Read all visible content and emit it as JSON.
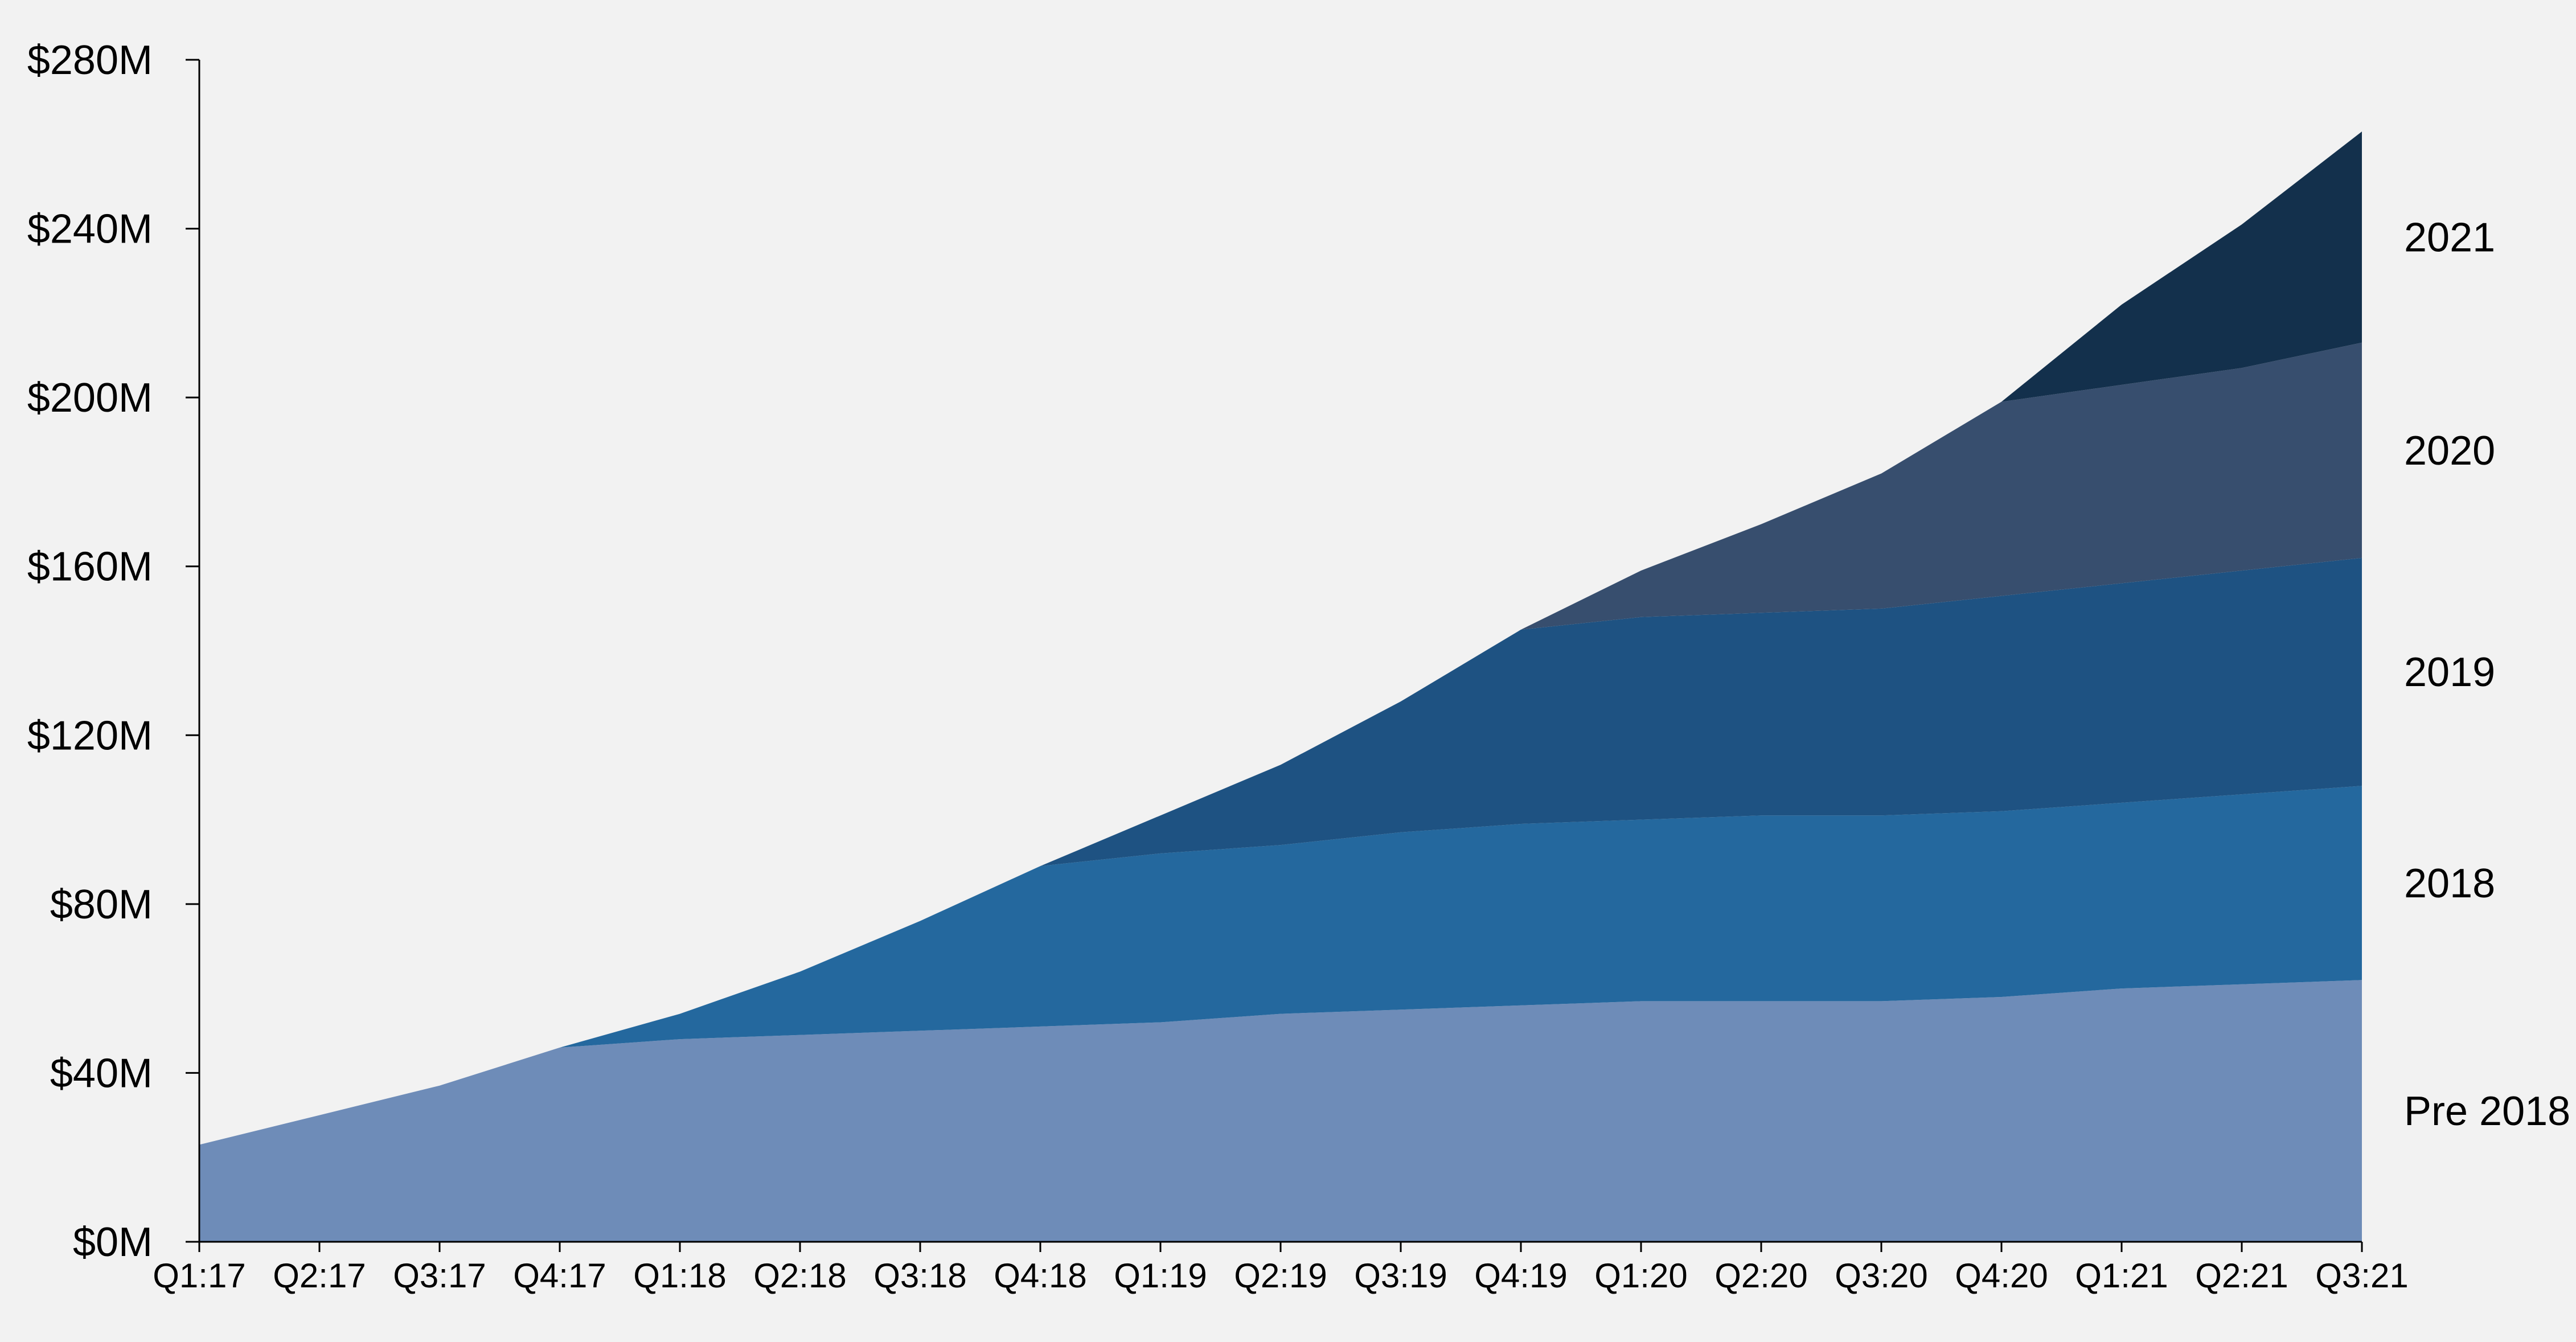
{
  "chart_data": {
    "type": "area",
    "stacked": true,
    "title": "",
    "xlabel": "",
    "ylabel": "",
    "x": [
      "Q1:17",
      "Q2:17",
      "Q3:17",
      "Q4:17",
      "Q1:18",
      "Q2:18",
      "Q3:18",
      "Q4:18",
      "Q1:19",
      "Q2:19",
      "Q3:19",
      "Q4:19",
      "Q1:20",
      "Q2:20",
      "Q3:20",
      "Q4:20",
      "Q1:21",
      "Q2:21",
      "Q3:21"
    ],
    "ylim": [
      0,
      280
    ],
    "y_ticks": [
      0,
      40,
      80,
      120,
      160,
      200,
      240,
      280
    ],
    "y_tick_labels": [
      "$0M",
      "$40M",
      "$80M",
      "$120M",
      "$160M",
      "$200M",
      "$240M",
      "$280M"
    ],
    "grid": false,
    "legend_placement": "right",
    "series": [
      {
        "name": "Pre 2018",
        "color": "#6e8cb8",
        "values": [
          23,
          30,
          37,
          46,
          48,
          49,
          50,
          51,
          52,
          54,
          55,
          56,
          57,
          57,
          57,
          58,
          60,
          61,
          62
        ]
      },
      {
        "name": "2018",
        "color": "#24689e",
        "values": [
          0,
          0,
          0,
          0,
          6,
          15,
          26,
          38,
          40,
          40,
          42,
          43,
          43,
          44,
          44,
          44,
          44,
          45,
          46
        ]
      },
      {
        "name": "2019",
        "color": "#1e5282",
        "values": [
          0,
          0,
          0,
          0,
          0,
          0,
          0,
          0,
          9,
          19,
          31,
          46,
          48,
          48,
          49,
          51,
          52,
          53,
          54
        ]
      },
      {
        "name": "2020",
        "color": "#374e6e",
        "values": [
          0,
          0,
          0,
          0,
          0,
          0,
          0,
          0,
          0,
          0,
          0,
          0,
          11,
          21,
          32,
          46,
          47,
          48,
          51
        ]
      },
      {
        "name": "2021",
        "color": "#13304c",
        "values": [
          0,
          0,
          0,
          0,
          0,
          0,
          0,
          0,
          0,
          0,
          0,
          0,
          0,
          0,
          0,
          0,
          19,
          34,
          50
        ]
      }
    ]
  }
}
